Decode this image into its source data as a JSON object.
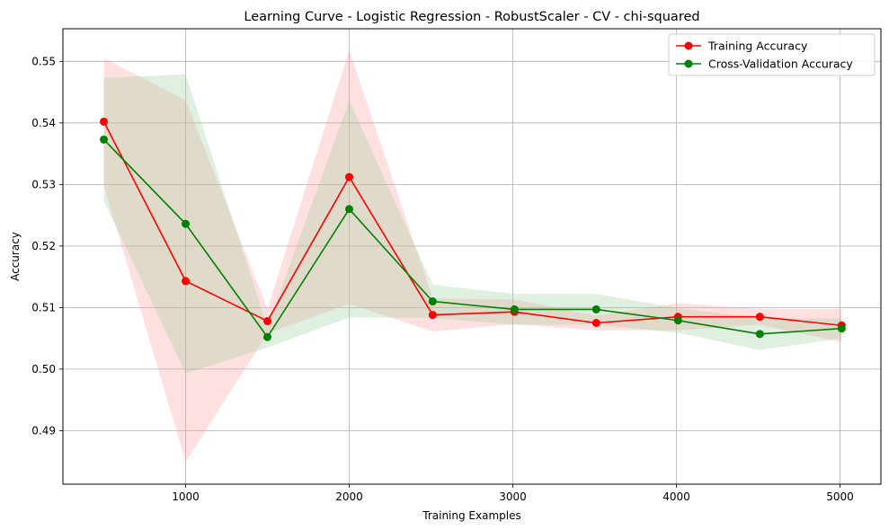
{
  "chart_data": {
    "type": "line",
    "title": "Learning Curve - Logistic Regression - RobustScaler - CV - chi-squared",
    "xlabel": "Training Examples",
    "ylabel": "Accuracy",
    "xlim": [
      250,
      5250
    ],
    "ylim": [
      0.4813,
      0.5553
    ],
    "xticks": [
      1000,
      2000,
      3000,
      4000,
      5000
    ],
    "xtick_labels": [
      "1000",
      "2000",
      "3000",
      "4000",
      "5000"
    ],
    "yticks": [
      0.49,
      0.5,
      0.51,
      0.52,
      0.53,
      0.54,
      0.55
    ],
    "ytick_labels": [
      "0.49",
      "0.50",
      "0.51",
      "0.52",
      "0.53",
      "0.54",
      "0.55"
    ],
    "grid": true,
    "legend_position": "top-right",
    "x": [
      500,
      1000,
      1500,
      2000,
      2510,
      3010,
      3510,
      4010,
      4510,
      5010
    ],
    "series": [
      {
        "name": "Training Accuracy",
        "color": "#ff0000",
        "fill_color": "#ff9999",
        "values": [
          0.5402,
          0.5143,
          0.5078,
          0.5312,
          0.5088,
          0.5093,
          0.5075,
          0.5085,
          0.5085,
          0.5071
        ],
        "upper": [
          0.5505,
          0.5437,
          0.5098,
          0.5518,
          0.5115,
          0.5113,
          0.5087,
          0.5107,
          0.5098,
          0.5098
        ],
        "lower": [
          0.5298,
          0.4849,
          0.5058,
          0.5106,
          0.5061,
          0.5073,
          0.5063,
          0.5063,
          0.5072,
          0.5044
        ]
      },
      {
        "name": "Cross-Validation Accuracy",
        "color": "#008000",
        "fill_color": "#99cc99",
        "values": [
          0.5373,
          0.5236,
          0.5052,
          0.526,
          0.511,
          0.5097,
          0.5097,
          0.5079,
          0.5057,
          0.5066
        ],
        "upper": [
          0.5473,
          0.5479,
          0.5069,
          0.5436,
          0.5137,
          0.5122,
          0.5122,
          0.5099,
          0.5083,
          0.5082
        ],
        "lower": [
          0.5273,
          0.4993,
          0.5035,
          0.5084,
          0.5083,
          0.5072,
          0.5072,
          0.5059,
          0.5031,
          0.505
        ]
      }
    ]
  }
}
